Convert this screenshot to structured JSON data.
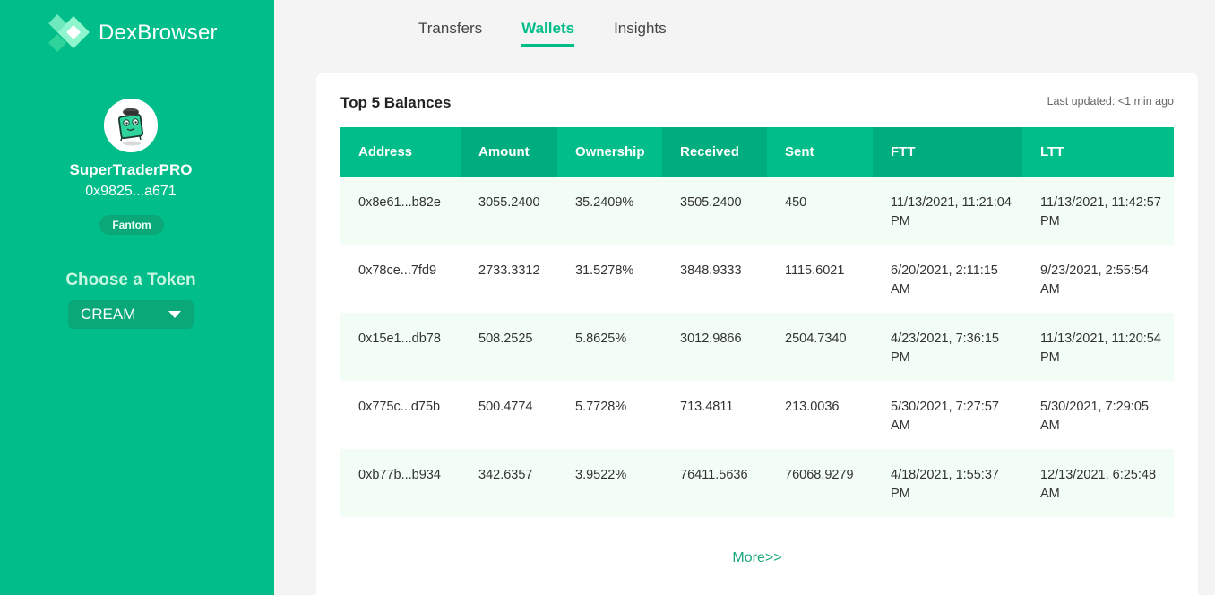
{
  "app": {
    "name": "DexBrowser"
  },
  "user": {
    "name": "SuperTraderPRO",
    "address": "0x9825...a671",
    "network": "Fantom"
  },
  "token_chooser": {
    "title": "Choose a Token",
    "selected": "CREAM"
  },
  "tabs": [
    {
      "label": "Transfers",
      "active": false
    },
    {
      "label": "Wallets",
      "active": true
    },
    {
      "label": "Insights",
      "active": false
    }
  ],
  "card": {
    "title": "Top 5 Balances",
    "last_updated": "Last updated: <1 min ago",
    "columns": [
      "Address",
      "Amount",
      "Ownership",
      "Received",
      "Sent",
      "FTT",
      "LTT"
    ],
    "rows": [
      {
        "address": "0x8e61...b82e",
        "amount": "3055.2400",
        "ownership": "35.2409%",
        "received": "3505.2400",
        "sent": "450",
        "ftt": "11/13/2021, 11:21:04 PM",
        "ltt": "11/13/2021, 11:42:57 PM"
      },
      {
        "address": "0x78ce...7fd9",
        "amount": "2733.3312",
        "ownership": "31.5278%",
        "received": "3848.9333",
        "sent": "1115.6021",
        "ftt": "6/20/2021, 2:11:15 AM",
        "ltt": "9/23/2021, 2:55:54 AM"
      },
      {
        "address": "0x15e1...db78",
        "amount": "508.2525",
        "ownership": "5.8625%",
        "received": "3012.9866",
        "sent": "2504.7340",
        "ftt": "4/23/2021, 7:36:15 PM",
        "ltt": "11/13/2021, 11:20:54 PM"
      },
      {
        "address": "0x775c...d75b",
        "amount": "500.4774",
        "ownership": "5.7728%",
        "received": "713.4811",
        "sent": "213.0036",
        "ftt": "5/30/2021, 7:27:57 AM",
        "ltt": "5/30/2021, 7:29:05 AM"
      },
      {
        "address": "0xb77b...b934",
        "amount": "342.6357",
        "ownership": "3.9522%",
        "received": "76411.5636",
        "sent": "76068.9279",
        "ftt": "4/18/2021, 1:55:37 PM",
        "ltt": "12/13/2021, 6:25:48 AM"
      }
    ],
    "more_label": "More>>"
  },
  "colors": {
    "brand": "#00bd8a",
    "brand_dark": "#00ad7e",
    "row_alt": "#f2fdf6",
    "link": "#1aa77d"
  },
  "icons": {
    "logo": "dexbrowser-logo-icon",
    "avatar": "trader-avatar-icon",
    "dropdown": "chevron-down-icon"
  }
}
